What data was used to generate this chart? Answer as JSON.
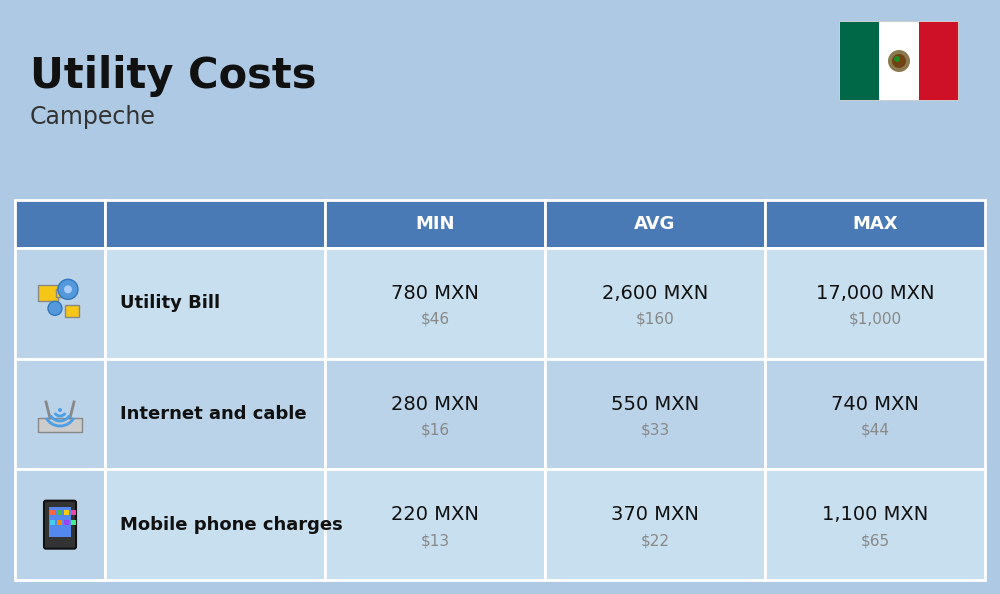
{
  "title": "Utility Costs",
  "subtitle": "Campeche",
  "background_color": "#adc9e4",
  "header_bg_color": "#4a7ab5",
  "header_text_color": "#ffffff",
  "row_color_light": "#c8dff0",
  "row_color_dark": "#bad3e8",
  "icon_col_color": "#bad3e8",
  "col_headers": [
    "MIN",
    "AVG",
    "MAX"
  ],
  "rows": [
    {
      "icon": "utility",
      "label": "Utility Bill",
      "min_mxn": "780 MXN",
      "min_usd": "$46",
      "avg_mxn": "2,600 MXN",
      "avg_usd": "$160",
      "max_mxn": "17,000 MXN",
      "max_usd": "$1,000"
    },
    {
      "icon": "internet",
      "label": "Internet and cable",
      "min_mxn": "280 MXN",
      "min_usd": "$16",
      "avg_mxn": "550 MXN",
      "avg_usd": "$33",
      "max_mxn": "740 MXN",
      "max_usd": "$44"
    },
    {
      "icon": "mobile",
      "label": "Mobile phone charges",
      "min_mxn": "220 MXN",
      "min_usd": "$13",
      "avg_mxn": "370 MXN",
      "avg_usd": "$22",
      "max_mxn": "1,100 MXN",
      "max_usd": "$65"
    }
  ],
  "title_fontsize": 30,
  "subtitle_fontsize": 17,
  "header_fontsize": 13,
  "label_fontsize": 13,
  "value_fontsize": 14,
  "usd_fontsize": 11,
  "flag_green": "#006847",
  "flag_white": "#ffffff",
  "flag_red": "#ce1126"
}
